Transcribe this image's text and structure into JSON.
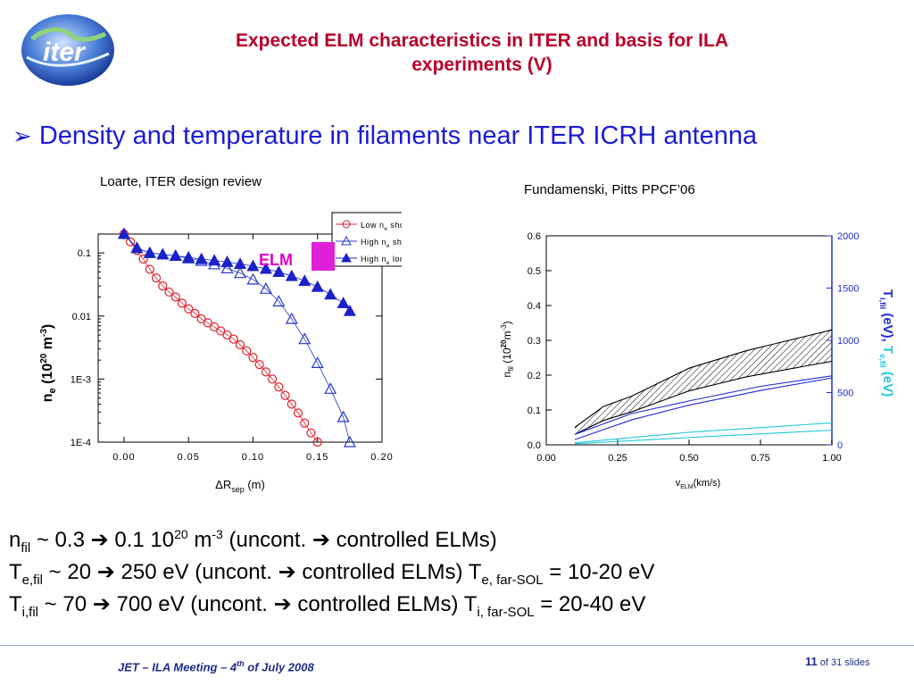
{
  "title_line1": "Expected ELM characteristics in ITER and basis for ILA",
  "title_line2": "experiments (V)",
  "logo_text": "iter",
  "bullet": "Density and temperature in filaments near ITER ICRH antenna",
  "left_caption": "Loarte, ITER design review",
  "right_caption": "Fundamenski, Pitts PPCF’06",
  "elm_label": "ELM",
  "text_lines": {
    "l1": {
      "a": "n",
      "b": "fil",
      "c": " ~ 0.3 ",
      "d": " 0.1 10",
      "e": "20",
      "f": " m",
      "g": "-3",
      "h": " (uncont. ",
      "i": " controlled ELMs)"
    },
    "l2": {
      "a": "T",
      "b": "e,fil",
      "c": " ~ 20 ",
      "d": " 250 eV (uncont. ",
      "e": " controlled ELMs) T",
      "f": "e, far-SOL",
      "g": " = 10-20 eV"
    },
    "l3": {
      "a": "T",
      "b": "i,fil",
      "c": " ~ 70 ",
      "d": " 700 eV (uncont. ",
      "e": " controlled ELMs) T",
      "f": "i, far-SOL",
      "g": " = 20-40 eV"
    }
  },
  "footer_left": {
    "a": "JET – ILA Meeting – 4",
    "b": "th",
    "c": " of July 2008"
  },
  "footer_right": {
    "num": "11",
    "rest": " of 31  slides"
  },
  "colors": {
    "title": "#b8002a",
    "bullet": "#1b1bd6",
    "elm": "#e000c8"
  },
  "chart_data": [
    {
      "type": "scatter",
      "xlabel": "ΔR",
      "xlabel_sub": "sep",
      "xlabel_unit": "(m)",
      "ylabel": "n",
      "ylabel_sub": "e",
      "ylabel_rest": "(10",
      "ylabel_exp": "20",
      "ylabel_unit": "m",
      "ylabel_unit_exp": "-3",
      "ylabel_close": ")",
      "yscale": "log",
      "xlim": [
        -0.02,
        0.2
      ],
      "ylim_log10": [
        -4,
        -0.7
      ],
      "xticks": [
        "0.00",
        "0.05",
        "0.10",
        "0.15",
        "0.20"
      ],
      "xtick_values": [
        0,
        0.05,
        0.1,
        0.15,
        0.2
      ],
      "yticks": [
        "0.1",
        "0.01",
        "1E-3",
        "1E-4"
      ],
      "ytick_values": [
        0.1,
        0.01,
        0.001,
        0.0001
      ],
      "legend": [
        {
          "t1": "Low n",
          "t2": "e",
          "t3": " short Far SOL"
        },
        {
          "t1": "High n",
          "t2": "e",
          "t3": " short Far SOL"
        },
        {
          "t1": "High n",
          "t2": "e",
          "t3": " long Far SOL"
        }
      ],
      "series": [
        {
          "name": "Low n_e short Far SOL",
          "marker": "circle",
          "color": "#e0202a",
          "x": [
            0.0,
            0.005,
            0.01,
            0.015,
            0.02,
            0.025,
            0.03,
            0.035,
            0.04,
            0.045,
            0.05,
            0.055,
            0.06,
            0.065,
            0.07,
            0.075,
            0.08,
            0.085,
            0.09,
            0.095,
            0.1,
            0.105,
            0.11,
            0.115,
            0.12,
            0.125,
            0.13,
            0.135,
            0.14,
            0.145,
            0.15
          ],
          "y": [
            0.2,
            0.15,
            0.11,
            0.08,
            0.055,
            0.04,
            0.03,
            0.024,
            0.02,
            0.016,
            0.013,
            0.011,
            0.009,
            0.0078,
            0.0067,
            0.0058,
            0.005,
            0.0043,
            0.0035,
            0.0028,
            0.0022,
            0.0017,
            0.0013,
            0.001,
            0.00075,
            0.00055,
            0.0004,
            0.00029,
            0.0002,
            0.00014,
            0.0001
          ]
        },
        {
          "name": "High n_e short Far SOL",
          "marker": "triangle-open",
          "color": "#2438d0",
          "x": [
            0.0,
            0.01,
            0.02,
            0.03,
            0.04,
            0.05,
            0.06,
            0.07,
            0.08,
            0.09,
            0.1,
            0.11,
            0.12,
            0.13,
            0.14,
            0.15,
            0.16,
            0.17,
            0.175
          ],
          "y": [
            0.2,
            0.12,
            0.1,
            0.095,
            0.09,
            0.082,
            0.075,
            0.066,
            0.057,
            0.048,
            0.038,
            0.027,
            0.017,
            0.009,
            0.0043,
            0.0018,
            0.0007,
            0.00025,
            0.0001
          ]
        },
        {
          "name": "High n_e long Far SOL",
          "marker": "triangle-filled",
          "color": "#1a22c8",
          "x": [
            0.0,
            0.01,
            0.02,
            0.03,
            0.04,
            0.05,
            0.06,
            0.07,
            0.08,
            0.09,
            0.1,
            0.11,
            0.12,
            0.13,
            0.14,
            0.15,
            0.16,
            0.17,
            0.175
          ],
          "y": [
            0.2,
            0.12,
            0.1,
            0.095,
            0.09,
            0.085,
            0.08,
            0.076,
            0.072,
            0.067,
            0.062,
            0.056,
            0.05,
            0.043,
            0.036,
            0.029,
            0.022,
            0.016,
            0.012
          ]
        }
      ]
    },
    {
      "type": "line",
      "xlabel": "v",
      "xlabel_sub": "ELM",
      "xlabel_unit": "(km/s)",
      "ylabel": "n",
      "ylabel_sub": "fil",
      "ylabel_rest": "(10",
      "ylabel_exp": "20",
      "ylabel_unit": "m",
      "ylabel_unit_exp": "-3",
      "ylabel_close": ")",
      "y2label_a": "T",
      "y2label_a_sub": "i,fil",
      "y2label_b": "(eV), ",
      "y2label_c": "T",
      "y2label_c_sub": "e,fil",
      "y2label_d": "(eV)",
      "xlim": [
        0.0,
        1.0
      ],
      "ylim": [
        0.0,
        0.6
      ],
      "y2lim": [
        0,
        2000
      ],
      "xticks": [
        "0.00",
        "0.25",
        "0.50",
        "0.75",
        "1.00"
      ],
      "xtick_values": [
        0,
        0.25,
        0.5,
        0.75,
        1.0
      ],
      "yticks": [
        "0.0",
        "0.1",
        "0.2",
        "0.3",
        "0.4",
        "0.5",
        "0.6"
      ],
      "ytick_values": [
        0,
        0.1,
        0.2,
        0.3,
        0.4,
        0.5,
        0.6
      ],
      "y2ticks": [
        "0",
        "500",
        "1000",
        "1500",
        "2000"
      ],
      "y2tick_values": [
        0,
        500,
        1000,
        1500,
        2000
      ],
      "series": [
        {
          "name": "n_fil upper",
          "axis": "left",
          "color": "#000000",
          "x": [
            0.1,
            0.2,
            0.3,
            0.4,
            0.5,
            0.6,
            0.7,
            0.8,
            0.9,
            1.0
          ],
          "y": [
            0.05,
            0.11,
            0.14,
            0.18,
            0.22,
            0.245,
            0.27,
            0.29,
            0.31,
            0.33
          ]
        },
        {
          "name": "n_fil lower",
          "axis": "left",
          "color": "#000000",
          "x": [
            0.1,
            0.2,
            0.3,
            0.4,
            0.5,
            0.6,
            0.7,
            0.8,
            0.9,
            1.0
          ],
          "y": [
            0.03,
            0.07,
            0.095,
            0.125,
            0.155,
            0.175,
            0.195,
            0.21,
            0.225,
            0.24
          ]
        },
        {
          "name": "T_i,fil upper",
          "axis": "right",
          "color": "#1f2bd0",
          "x": [
            0.1,
            0.3,
            0.5,
            0.75,
            1.0
          ],
          "y": [
            100,
            300,
            420,
            560,
            660
          ]
        },
        {
          "name": "T_i,fil lower",
          "axis": "right",
          "color": "#1f2bd0",
          "x": [
            0.1,
            0.3,
            0.5,
            0.75,
            1.0
          ],
          "y": [
            50,
            240,
            380,
            520,
            640
          ]
        },
        {
          "name": "T_e,fil upper",
          "axis": "right",
          "color": "#20c8d8",
          "x": [
            0.1,
            0.5,
            1.0
          ],
          "y": [
            20,
            120,
            210
          ]
        },
        {
          "name": "T_e,fil lower",
          "axis": "right",
          "color": "#20c8d8",
          "x": [
            0.1,
            0.5,
            1.0
          ],
          "y": [
            10,
            70,
            140
          ]
        }
      ]
    }
  ]
}
